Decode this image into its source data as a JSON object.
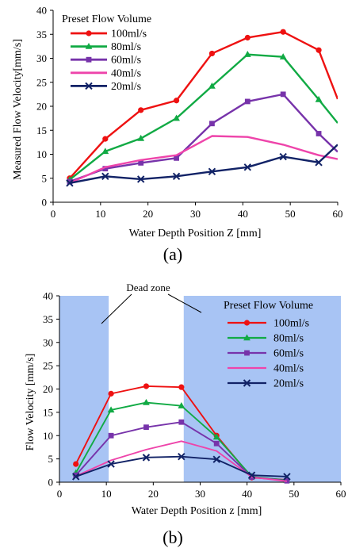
{
  "chart_data": [
    {
      "type": "line",
      "panel_label": "(a)",
      "xlabel": "Water Depth Position Z [mm]",
      "ylabel": "Measured Flow Velocity[mm/s]",
      "xlim": [
        0,
        60
      ],
      "ylim": [
        0,
        40
      ],
      "xticks": [
        "0",
        "10",
        "20",
        "30",
        "40",
        "50",
        "60"
      ],
      "yticks": [
        "0",
        "5",
        "10",
        "15",
        "20",
        "25",
        "30",
        "35",
        "40"
      ],
      "grid": false,
      "legend_title": "Preset Flow Volume",
      "legend_position": "top-left",
      "x": [
        3.5,
        11,
        18.5,
        26,
        33.5,
        41,
        48.5,
        56,
        60
      ],
      "series": [
        {
          "name": "100ml/s",
          "color": "#ee1111",
          "marker": "circle",
          "values": [
            5.0,
            13.2,
            19.2,
            21.2,
            31.0,
            34.3,
            35.5,
            31.7,
            21.5
          ]
        },
        {
          "name": "80ml/s",
          "color": "#11aa44",
          "marker": "triangle",
          "values": [
            4.7,
            10.6,
            13.3,
            17.5,
            24.2,
            30.8,
            30.3,
            21.4,
            16.5
          ]
        },
        {
          "name": "60ml/s",
          "color": "#7733aa",
          "marker": "square",
          "values": [
            4.3,
            7.0,
            8.2,
            9.2,
            16.4,
            21.0,
            22.5,
            14.3,
            10.5
          ]
        },
        {
          "name": "40ml/s",
          "color": "#ee44aa",
          "marker": "none",
          "values": [
            4.0,
            7.3,
            8.8,
            9.8,
            13.8,
            13.6,
            12.0,
            9.8,
            9.0
          ]
        },
        {
          "name": "20ml/s",
          "color": "#112266",
          "marker": "x",
          "values": [
            4.0,
            5.4,
            4.8,
            5.4,
            6.4,
            7.3,
            9.5,
            8.3,
            12.0
          ]
        }
      ]
    },
    {
      "type": "line",
      "panel_label": "(b)",
      "xlabel": "Water Depth Position  z [mm]",
      "ylabel": "Flow Velocity [mm/s]",
      "xlim": [
        0,
        60
      ],
      "ylim": [
        0,
        40
      ],
      "xticks": [
        "0",
        "10",
        "20",
        "30",
        "40",
        "50",
        "60"
      ],
      "yticks": [
        "0",
        "5",
        "10",
        "15",
        "20",
        "25",
        "30",
        "35",
        "40"
      ],
      "grid": false,
      "annotation": "Dead zone",
      "dead_zones": [
        [
          0,
          10.5
        ],
        [
          26.5,
          60
        ]
      ],
      "dead_zone_color": "#a8c4f4",
      "legend_title": "Preset Flow Volume",
      "legend_position": "top-right",
      "x": [
        3.5,
        11,
        18.5,
        26,
        33.5,
        41,
        48.5
      ],
      "series": [
        {
          "name": "100ml/s",
          "color": "#ee1111",
          "marker": "circle",
          "values": [
            3.9,
            19.0,
            20.6,
            20.4,
            10.0,
            1.0,
            0.5
          ]
        },
        {
          "name": "80ml/s",
          "color": "#11aa44",
          "marker": "triangle",
          "values": [
            2.0,
            15.5,
            17.1,
            16.4,
            9.7,
            1.2,
            0.4
          ]
        },
        {
          "name": "60ml/s",
          "color": "#7733aa",
          "marker": "square",
          "values": [
            1.5,
            10.0,
            11.8,
            12.9,
            8.3,
            1.1,
            0.3
          ]
        },
        {
          "name": "40ml/s",
          "color": "#ee44aa",
          "marker": "none",
          "values": [
            1.3,
            4.7,
            7.0,
            8.8,
            6.7,
            1.1,
            0.2
          ]
        },
        {
          "name": "20ml/s",
          "color": "#112266",
          "marker": "x",
          "values": [
            1.2,
            3.9,
            5.3,
            5.5,
            4.9,
            1.5,
            1.2
          ]
        }
      ]
    }
  ]
}
